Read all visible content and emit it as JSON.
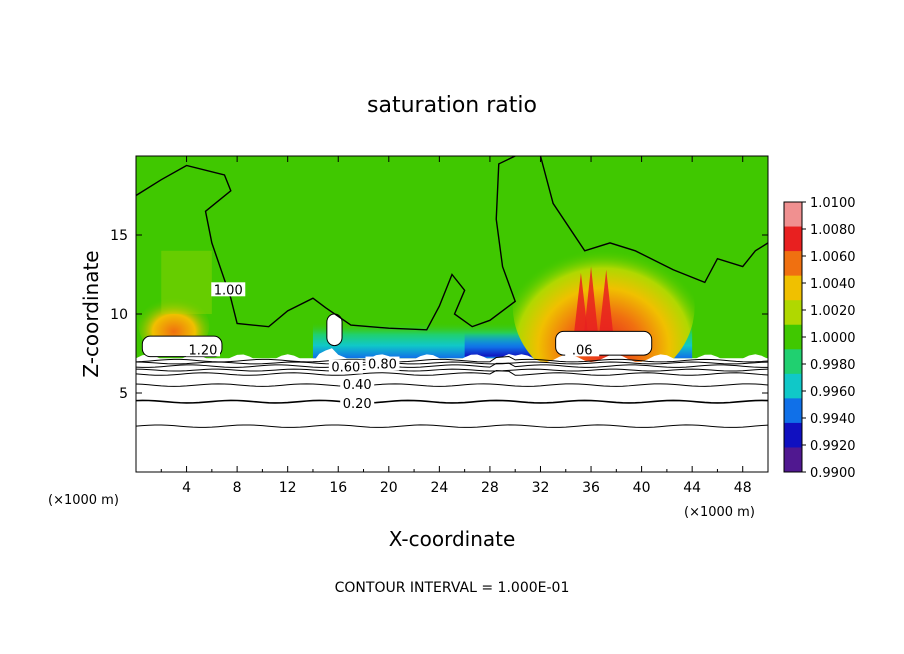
{
  "chart_data": {
    "type": "heatmap",
    "title": "saturation ratio",
    "xlabel": "X-coordinate",
    "ylabel": "Z-coordinate",
    "x_unit": "(×1000 m)",
    "y_unit": "(×1000 m)",
    "xlim": [
      0,
      50
    ],
    "ylim": [
      0,
      20
    ],
    "x_ticks": [
      4,
      8,
      12,
      16,
      20,
      24,
      28,
      32,
      36,
      40,
      44,
      48
    ],
    "y_ticks": [
      5,
      10,
      15
    ],
    "note": "CONTOUR INTERVAL = 1.000E-01",
    "colorbar": {
      "min": 0.99,
      "max": 1.01,
      "labels": [
        "1.0100",
        "1.0080",
        "1.0060",
        "1.0040",
        "1.0020",
        "1.0000",
        "0.9980",
        "0.9960",
        "0.9940",
        "0.9920",
        "0.9900"
      ],
      "colors": [
        "#f09090",
        "#e82020",
        "#f07010",
        "#f0c000",
        "#b0d800",
        "#40c800",
        "#20d070",
        "#10c8c8",
        "#1070e8",
        "#1010c0",
        "#501890"
      ]
    },
    "contour_levels": [
      0.2,
      0.4,
      0.6,
      0.8,
      1.0,
      1.2
    ],
    "contour_labels": [
      {
        "text": "0.20",
        "x": 17.5,
        "z": 4.3
      },
      {
        "text": "0.40",
        "x": 17.5,
        "z": 5.5
      },
      {
        "text": "0.60",
        "x": 16.6,
        "z": 6.6
      },
      {
        "text": "0.80",
        "x": 19.5,
        "z": 6.8
      },
      {
        "text": "1.00",
        "x": 7.3,
        "z": 11.5
      },
      {
        "text": "1.20",
        "x": 5.3,
        "z": 7.7
      },
      {
        "text": ".06",
        "x": 35.3,
        "z": 7.7
      }
    ],
    "field_regions": [
      {
        "x": [
          0,
          50
        ],
        "z": [
          7.2,
          20
        ],
        "value": 0.9998
      },
      {
        "x": [
          14,
          44
        ],
        "z": [
          7.2,
          9.5
        ],
        "value": 0.9955
      },
      {
        "x": [
          26,
          33
        ],
        "z": [
          7.3,
          8.8
        ],
        "value": 0.9932
      },
      {
        "x": [
          34,
          40
        ],
        "z": [
          8.5,
          12.5
        ],
        "value": 1.006
      },
      {
        "x": [
          1,
          5
        ],
        "z": [
          8.5,
          10
        ],
        "value": 1.0045
      },
      {
        "x": [
          2,
          6
        ],
        "z": [
          10,
          14
        ],
        "value": 1.0025
      }
    ]
  }
}
